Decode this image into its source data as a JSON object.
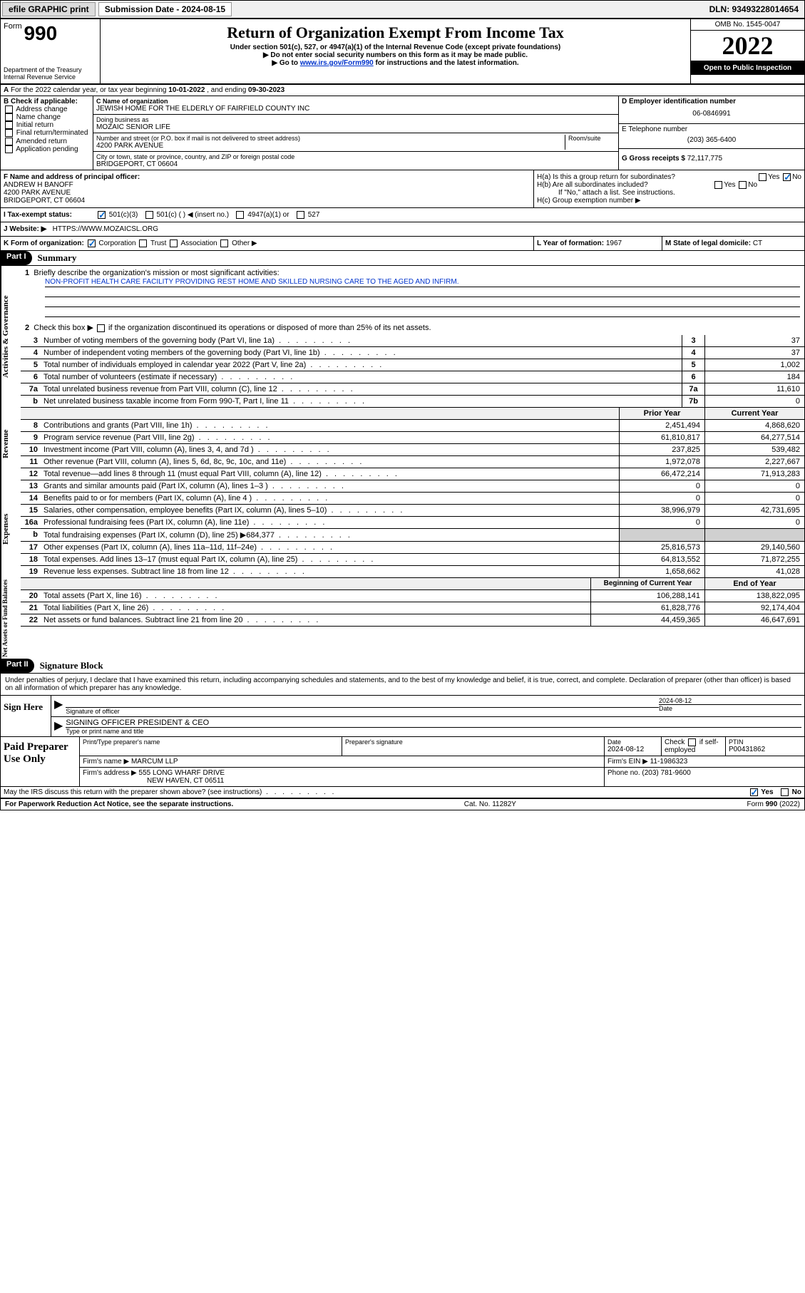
{
  "topbar": {
    "efile": "efile GRAPHIC print",
    "sub_label": "Submission Date - 2024-08-15",
    "dln": "DLN: 93493228014654"
  },
  "header": {
    "form_prefix": "Form",
    "form_num": "990",
    "dept": "Department of the Treasury Internal Revenue Service",
    "title": "Return of Organization Exempt From Income Tax",
    "subtitle": "Under section 501(c), 527, or 4947(a)(1) of the Internal Revenue Code (except private foundations)",
    "warn1": "▶ Do not enter social security numbers on this form as it may be made public.",
    "warn2_pre": "▶ Go to ",
    "warn2_link": "www.irs.gov/Form990",
    "warn2_post": " for instructions and the latest information.",
    "omb": "OMB No. 1545-0047",
    "year": "2022",
    "open": "Open to Public Inspection"
  },
  "rowA": {
    "text_pre": "For the 2022 calendar year, or tax year beginning ",
    "begin": "10-01-2022",
    "mid": " , and ending ",
    "end": "09-30-2023"
  },
  "colB": {
    "hdr": "B Check if applicable:",
    "opts": [
      "Address change",
      "Name change",
      "Initial return",
      "Final return/terminated",
      "Amended return",
      "Application pending"
    ]
  },
  "colC": {
    "name_hdr": "C Name of organization",
    "name": "JEWISH HOME FOR THE ELDERLY OF FAIRFIELD COUNTY INC",
    "dba_hdr": "Doing business as",
    "dba": "MOZAIC SENIOR LIFE",
    "addr_hdr": "Number and street (or P.O. box if mail is not delivered to street address)",
    "room_hdr": "Room/suite",
    "addr": "4200 PARK AVENUE",
    "city_hdr": "City or town, state or province, country, and ZIP or foreign postal code",
    "city": "BRIDGEPORT, CT  06604"
  },
  "colD": {
    "d_hdr": "D Employer identification number",
    "d_val": "06-0846991",
    "e_hdr": "E Telephone number",
    "e_val": "(203) 365-6400",
    "g_hdr": "G Gross receipts $",
    "g_val": "72,117,775"
  },
  "rowF": {
    "f_hdr": "F Name and address of principal officer:",
    "f_name": "ANDREW H BANOFF",
    "f_addr1": "4200 PARK AVENUE",
    "f_addr2": "BRIDGEPORT, CT  06604",
    "ha": "H(a)  Is this a group return for subordinates?",
    "hb": "H(b)  Are all subordinates included?",
    "hb_note": "If \"No,\" attach a list. See instructions.",
    "hc": "H(c)  Group exemption number ▶"
  },
  "rowI": {
    "label": "I   Tax-exempt status:",
    "opt1": "501(c)(3)",
    "opt2": "501(c) (   ) ◀ (insert no.)",
    "opt3": "4947(a)(1) or",
    "opt4": "527"
  },
  "rowJ": {
    "label": "J   Website: ▶",
    "val": "HTTPS://WWW.MOZAICSL.ORG"
  },
  "rowK": {
    "label": "K Form of organization:",
    "opts": [
      "Corporation",
      "Trust",
      "Association",
      "Other ▶"
    ]
  },
  "rowL": {
    "label": "L Year of formation:",
    "val": "1967"
  },
  "rowM": {
    "label": "M State of legal domicile:",
    "val": "CT"
  },
  "part1": {
    "hdr": "Part I",
    "title": "Summary"
  },
  "brief": {
    "num": "1",
    "label": "Briefly describe the organization's mission or most significant activities:",
    "mission": "NON-PROFIT HEALTH CARE FACILITY PROVIDING REST HOME AND SKILLED NURSING CARE TO THE AGED AND INFIRM."
  },
  "line2": {
    "num": "2",
    "text": "Check this box ▶",
    "post": " if the organization discontinued its operations or disposed of more than 25% of its net assets."
  },
  "side_labels": {
    "gov": "Activities & Governance",
    "rev": "Revenue",
    "exp": "Expenses",
    "net": "Net Assets or Fund Balances"
  },
  "gov_rows": [
    {
      "n": "3",
      "d": "Number of voting members of the governing body (Part VI, line 1a)",
      "i": "3",
      "v": "37"
    },
    {
      "n": "4",
      "d": "Number of independent voting members of the governing body (Part VI, line 1b)",
      "i": "4",
      "v": "37"
    },
    {
      "n": "5",
      "d": "Total number of individuals employed in calendar year 2022 (Part V, line 2a)",
      "i": "5",
      "v": "1,002"
    },
    {
      "n": "6",
      "d": "Total number of volunteers (estimate if necessary)",
      "i": "6",
      "v": "184"
    },
    {
      "n": "7a",
      "d": "Total unrelated business revenue from Part VIII, column (C), line 12",
      "i": "7a",
      "v": "11,610"
    },
    {
      "n": "b",
      "d": "Net unrelated business taxable income from Form 990-T, Part I, line 11",
      "i": "7b",
      "v": "0"
    }
  ],
  "rev_hdr": {
    "prior": "Prior Year",
    "curr": "Current Year"
  },
  "rev_rows": [
    {
      "n": "8",
      "d": "Contributions and grants (Part VIII, line 1h)",
      "p": "2,451,494",
      "c": "4,868,620"
    },
    {
      "n": "9",
      "d": "Program service revenue (Part VIII, line 2g)",
      "p": "61,810,817",
      "c": "64,277,514"
    },
    {
      "n": "10",
      "d": "Investment income (Part VIII, column (A), lines 3, 4, and 7d )",
      "p": "237,825",
      "c": "539,482"
    },
    {
      "n": "11",
      "d": "Other revenue (Part VIII, column (A), lines 5, 6d, 8c, 9c, 10c, and 11e)",
      "p": "1,972,078",
      "c": "2,227,667"
    },
    {
      "n": "12",
      "d": "Total revenue—add lines 8 through 11 (must equal Part VIII, column (A), line 12)",
      "p": "66,472,214",
      "c": "71,913,283"
    }
  ],
  "exp_rows": [
    {
      "n": "13",
      "d": "Grants and similar amounts paid (Part IX, column (A), lines 1–3 )",
      "p": "0",
      "c": "0"
    },
    {
      "n": "14",
      "d": "Benefits paid to or for members (Part IX, column (A), line 4 )",
      "p": "0",
      "c": "0"
    },
    {
      "n": "15",
      "d": "Salaries, other compensation, employee benefits (Part IX, column (A), lines 5–10)",
      "p": "38,996,979",
      "c": "42,731,695"
    },
    {
      "n": "16a",
      "d": "Professional fundraising fees (Part IX, column (A), line 11e)",
      "p": "0",
      "c": "0"
    },
    {
      "n": "b",
      "d": "Total fundraising expenses (Part IX, column (D), line 25) ▶684,377",
      "p": "",
      "c": "",
      "shaded": true
    },
    {
      "n": "17",
      "d": "Other expenses (Part IX, column (A), lines 11a–11d, 11f–24e)",
      "p": "25,816,573",
      "c": "29,140,560"
    },
    {
      "n": "18",
      "d": "Total expenses. Add lines 13–17 (must equal Part IX, column (A), line 25)",
      "p": "64,813,552",
      "c": "71,872,255"
    },
    {
      "n": "19",
      "d": "Revenue less expenses. Subtract line 18 from line 12",
      "p": "1,658,662",
      "c": "41,028"
    }
  ],
  "net_hdr": {
    "prior": "Beginning of Current Year",
    "curr": "End of Year"
  },
  "net_rows": [
    {
      "n": "20",
      "d": "Total assets (Part X, line 16)",
      "p": "106,288,141",
      "c": "138,822,095"
    },
    {
      "n": "21",
      "d": "Total liabilities (Part X, line 26)",
      "p": "61,828,776",
      "c": "92,174,404"
    },
    {
      "n": "22",
      "d": "Net assets or fund balances. Subtract line 21 from line 20",
      "p": "44,459,365",
      "c": "46,647,691"
    }
  ],
  "part2": {
    "hdr": "Part II",
    "title": "Signature Block"
  },
  "sig": {
    "declare": "Under penalties of perjury, I declare that I have examined this return, including accompanying schedules and statements, and to the best of my knowledge and belief, it is true, correct, and complete. Declaration of preparer (other than officer) is based on all information of which preparer has any knowledge.",
    "sign_here": "Sign Here",
    "sig_officer": "Signature of officer",
    "date": "Date",
    "date_val": "2024-08-12",
    "name_title": "SIGNING OFFICER  PRESIDENT & CEO",
    "type_name": "Type or print name and title"
  },
  "paid": {
    "hdr": "Paid Preparer Use Only",
    "h1": "Print/Type preparer's name",
    "h2": "Preparer's signature",
    "h3": "Date",
    "h3v": "2024-08-12",
    "h4": "Check",
    "h4b": "if self-employed",
    "h5": "PTIN",
    "h5v": "P00431862",
    "firm_name_l": "Firm's name    ▶",
    "firm_name": "MARCUM LLP",
    "firm_ein_l": "Firm's EIN ▶",
    "firm_ein": "11-1986323",
    "firm_addr_l": "Firm's address ▶",
    "firm_addr1": "555 LONG WHARF DRIVE",
    "firm_addr2": "NEW HAVEN, CT  06511",
    "phone_l": "Phone no.",
    "phone": "(203) 781-9600"
  },
  "may_discuss": "May the IRS discuss this return with the preparer shown above? (see instructions)",
  "footer": {
    "left": "For Paperwork Reduction Act Notice, see the separate instructions.",
    "mid": "Cat. No. 11282Y",
    "right": "Form 990 (2022)"
  },
  "yes": "Yes",
  "no": "No"
}
